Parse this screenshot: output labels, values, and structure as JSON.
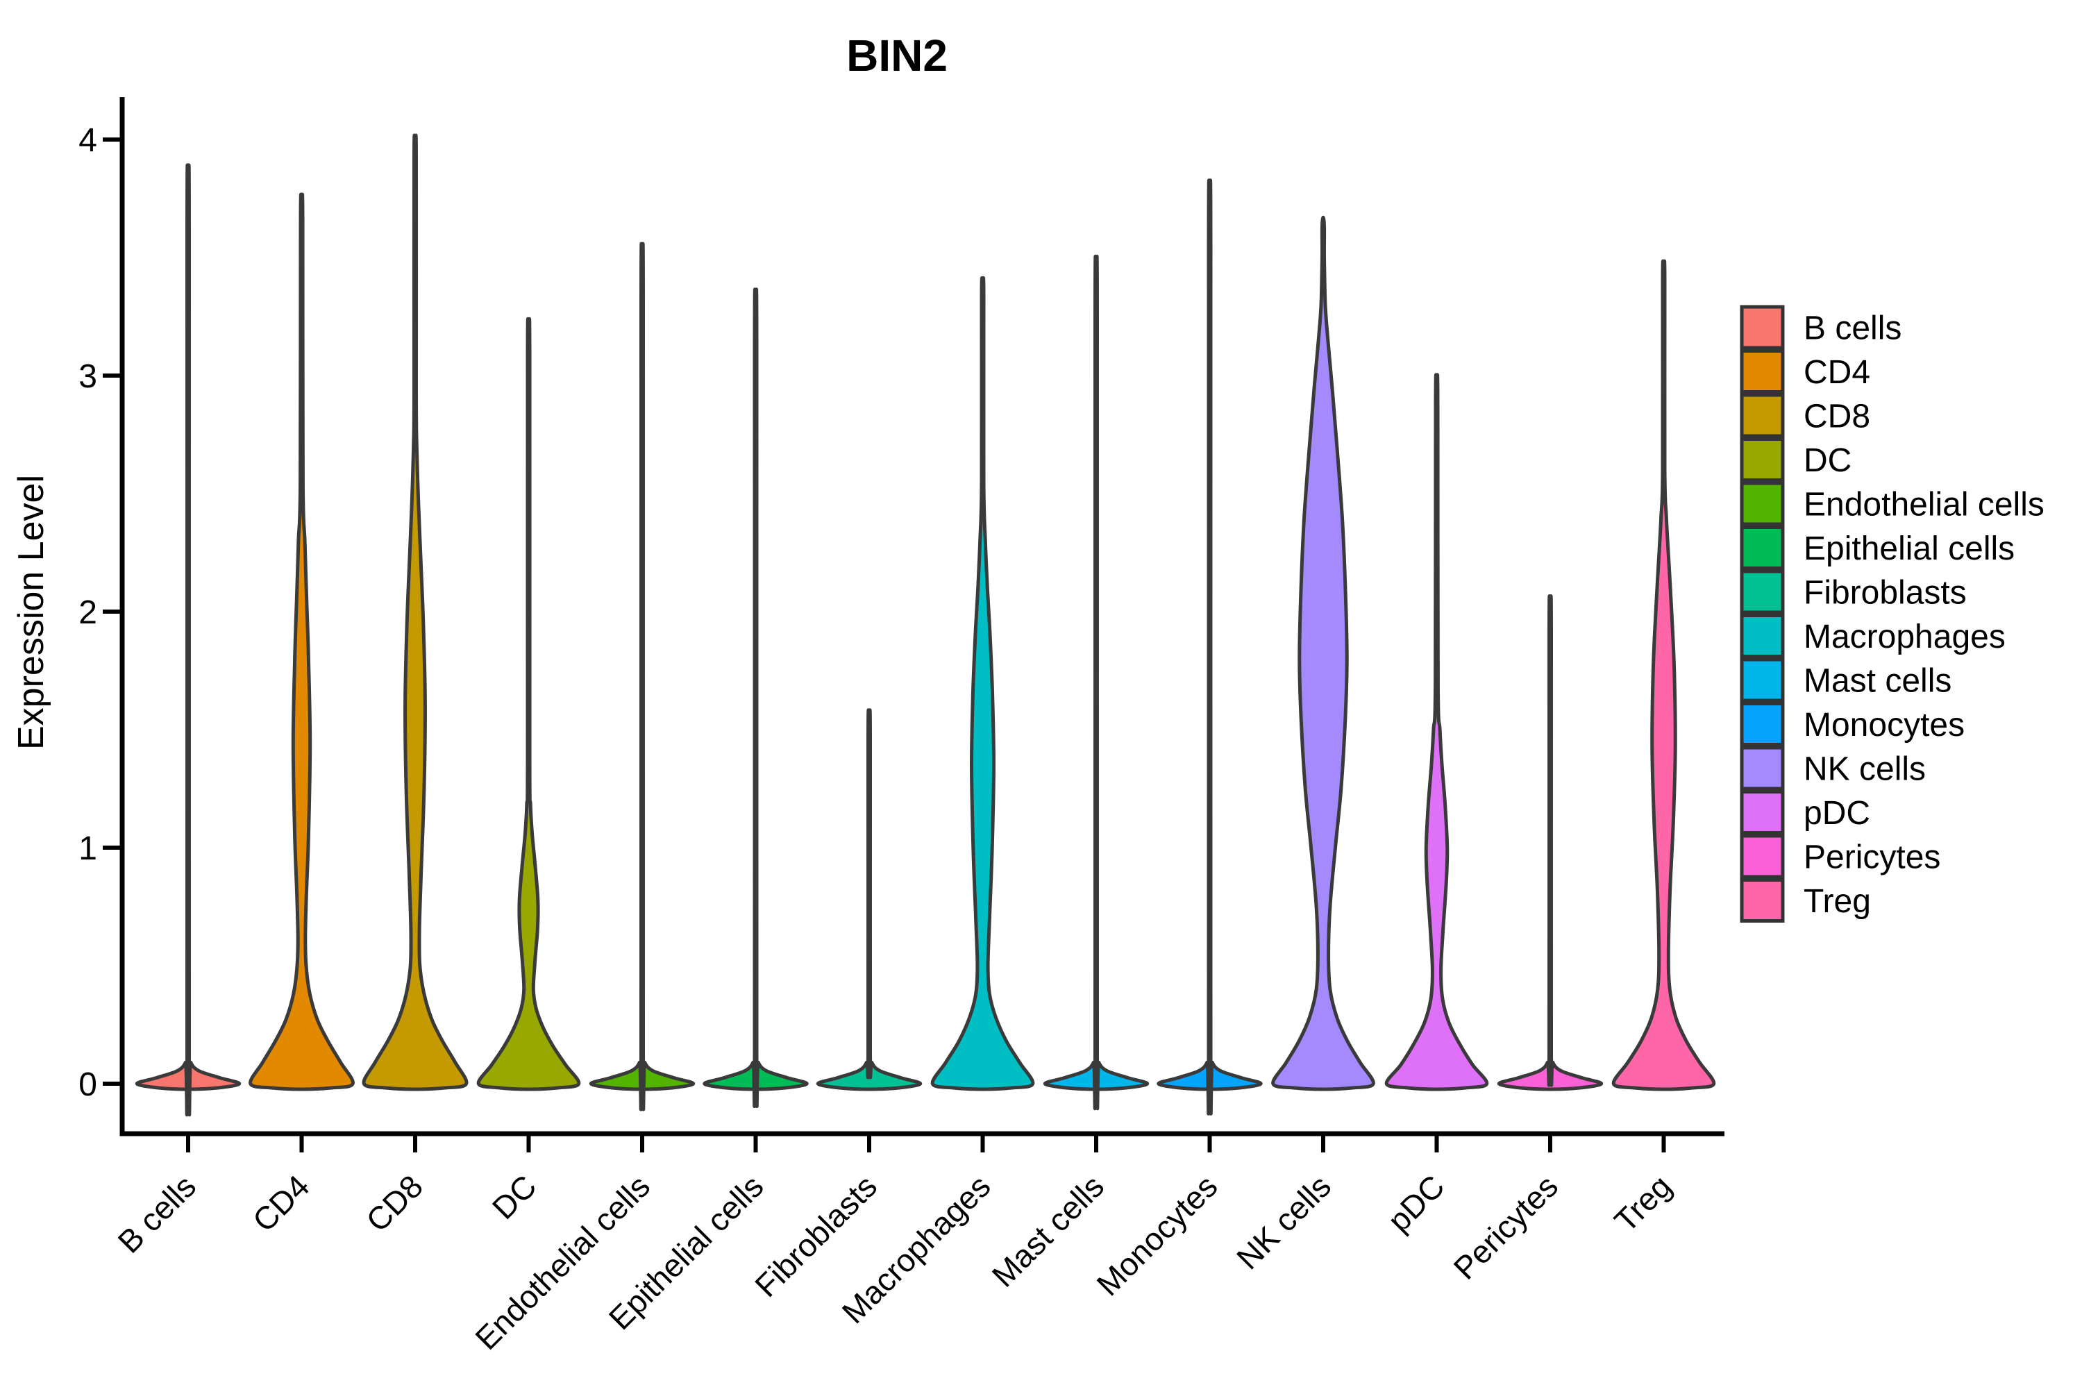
{
  "title": "BIN2",
  "y_axis": {
    "label": "Expression Level",
    "ticks": [
      "4",
      "3",
      "2",
      "1",
      "0"
    ]
  },
  "x_axis": {
    "categories": [
      "B cells",
      "CD4",
      "CD8",
      "DC",
      "Endothelial cells",
      "Epithelial cells",
      "Fibroblasts",
      "Macrophages",
      "Mast cells",
      "Monocytes",
      "NK cells",
      "pDC",
      "Pericytes",
      "Treg"
    ]
  },
  "legend": {
    "items": [
      {
        "label": "B cells",
        "color": "#F8766D"
      },
      {
        "label": "CD4",
        "color": "#E38900"
      },
      {
        "label": "CD8",
        "color": "#C49A00"
      },
      {
        "label": "DC",
        "color": "#99A800"
      },
      {
        "label": "Endothelial cells",
        "color": "#53B400"
      },
      {
        "label": "Epithelial cells",
        "color": "#00BC56"
      },
      {
        "label": "Fibroblasts",
        "color": "#00C094"
      },
      {
        "label": "Macrophages",
        "color": "#00BFC4"
      },
      {
        "label": "Mast cells",
        "color": "#00B6EB"
      },
      {
        "label": "Monocytes",
        "color": "#06A4FF"
      },
      {
        "label": "NK cells",
        "color": "#A58AFF"
      },
      {
        "label": "pDC",
        "color": "#DF70F8"
      },
      {
        "label": "Pericytes",
        "color": "#FB61D7"
      },
      {
        "label": "Treg",
        "color": "#FF66A8"
      }
    ]
  },
  "chart_data": {
    "type": "violin",
    "title": "BIN2",
    "xlabel": "",
    "ylabel": "Expression Level",
    "ylim": [
      -0.2,
      4.2
    ],
    "y_ticks": [
      0,
      1,
      2,
      3,
      4
    ],
    "grid": false,
    "legend_position": "right",
    "categories": [
      "B cells",
      "CD4",
      "CD8",
      "DC",
      "Endothelial cells",
      "Epithelial cells",
      "Fibroblasts",
      "Macrophages",
      "Mast cells",
      "Monocytes",
      "NK cells",
      "pDC",
      "Pericytes",
      "Treg"
    ],
    "colors": [
      "#F8766D",
      "#E38900",
      "#C49A00",
      "#99A800",
      "#53B400",
      "#00BC56",
      "#00C094",
      "#00BFC4",
      "#00B6EB",
      "#06A4FF",
      "#A58AFF",
      "#DF70F8",
      "#FB61D7",
      "#FF66A8"
    ],
    "outline_color": "#3A3A3A",
    "series": [
      {
        "name": "B cells",
        "max_expression": 3.66,
        "shape": "flat",
        "profile": [
          [
            0,
            0.97
          ],
          [
            0.025,
            0.6
          ],
          [
            0.055,
            0.2
          ],
          [
            0.09,
            0.05
          ],
          [
            0.14,
            0.02
          ],
          [
            3.62,
            0.02
          ],
          [
            3.66,
            0
          ]
        ]
      },
      {
        "name": "CD4",
        "max_expression": 3.71,
        "shape": "bell_bulge",
        "profile": [
          [
            0,
            0.97
          ],
          [
            0.09,
            0.74
          ],
          [
            0.18,
            0.5
          ],
          [
            0.27,
            0.3
          ],
          [
            0.38,
            0.155
          ],
          [
            0.5,
            0.085
          ],
          [
            0.62,
            0.07
          ],
          [
            0.8,
            0.09
          ],
          [
            1.05,
            0.13
          ],
          [
            1.44,
            0.16
          ],
          [
            1.8,
            0.13
          ],
          [
            2.05,
            0.095
          ],
          [
            2.3,
            0.06
          ],
          [
            2.55,
            0.025
          ],
          [
            3.67,
            0.02
          ],
          [
            3.71,
            0
          ]
        ]
      },
      {
        "name": "CD8",
        "max_expression": 3.97,
        "shape": "bell_bulge",
        "profile": [
          [
            0,
            0.97
          ],
          [
            0.09,
            0.76
          ],
          [
            0.18,
            0.52
          ],
          [
            0.27,
            0.32
          ],
          [
            0.38,
            0.17
          ],
          [
            0.5,
            0.09
          ],
          [
            0.65,
            0.08
          ],
          [
            0.9,
            0.115
          ],
          [
            1.25,
            0.17
          ],
          [
            1.61,
            0.19
          ],
          [
            1.95,
            0.155
          ],
          [
            2.2,
            0.11
          ],
          [
            2.45,
            0.065
          ],
          [
            2.7,
            0.03
          ],
          [
            2.95,
            0.02
          ],
          [
            3.93,
            0.02
          ],
          [
            3.97,
            0
          ]
        ]
      },
      {
        "name": "DC",
        "max_expression": 3.14,
        "shape": "bell_bulge",
        "profile": [
          [
            0,
            0.95
          ],
          [
            0.08,
            0.7
          ],
          [
            0.16,
            0.46
          ],
          [
            0.24,
            0.27
          ],
          [
            0.32,
            0.14
          ],
          [
            0.4,
            0.09
          ],
          [
            0.52,
            0.12
          ],
          [
            0.66,
            0.17
          ],
          [
            0.78,
            0.175
          ],
          [
            0.92,
            0.125
          ],
          [
            1.05,
            0.07
          ],
          [
            1.18,
            0.035
          ],
          [
            1.4,
            0.02
          ],
          [
            3.1,
            0.02
          ],
          [
            3.14,
            0
          ]
        ]
      },
      {
        "name": "Endothelial cells",
        "max_expression": 3.35,
        "shape": "flat",
        "profile": [
          [
            0,
            0.97
          ],
          [
            0.025,
            0.6
          ],
          [
            0.055,
            0.2
          ],
          [
            0.09,
            0.05
          ],
          [
            0.14,
            0.02
          ],
          [
            3.31,
            0.02
          ],
          [
            3.35,
            0
          ]
        ]
      },
      {
        "name": "Epithelial cells",
        "max_expression": 3.17,
        "shape": "flat",
        "profile": [
          [
            0,
            0.97
          ],
          [
            0.025,
            0.6
          ],
          [
            0.055,
            0.2
          ],
          [
            0.09,
            0.05
          ],
          [
            0.14,
            0.02
          ],
          [
            3.13,
            0.02
          ],
          [
            3.17,
            0
          ]
        ]
      },
      {
        "name": "Fibroblasts",
        "max_expression": 1.51,
        "shape": "flat",
        "profile": [
          [
            0,
            0.97
          ],
          [
            0.025,
            0.6
          ],
          [
            0.055,
            0.2
          ],
          [
            0.09,
            0.05
          ],
          [
            0.14,
            0.02
          ],
          [
            1.47,
            0.02
          ],
          [
            1.51,
            0
          ]
        ]
      },
      {
        "name": "Macrophages",
        "max_expression": 3.38,
        "shape": "bell_bulge",
        "profile": [
          [
            0,
            0.95
          ],
          [
            0.09,
            0.7
          ],
          [
            0.18,
            0.45
          ],
          [
            0.28,
            0.25
          ],
          [
            0.38,
            0.13
          ],
          [
            0.5,
            0.1
          ],
          [
            0.7,
            0.13
          ],
          [
            1.0,
            0.18
          ],
          [
            1.35,
            0.21
          ],
          [
            1.65,
            0.185
          ],
          [
            1.9,
            0.14
          ],
          [
            2.1,
            0.09
          ],
          [
            2.3,
            0.05
          ],
          [
            2.55,
            0.02
          ],
          [
            3.34,
            0.02
          ],
          [
            3.38,
            0
          ]
        ]
      },
      {
        "name": "Mast cells",
        "max_expression": 3.3,
        "shape": "flat",
        "profile": [
          [
            0,
            0.97
          ],
          [
            0.025,
            0.6
          ],
          [
            0.055,
            0.2
          ],
          [
            0.09,
            0.05
          ],
          [
            0.14,
            0.02
          ],
          [
            3.26,
            0.02
          ],
          [
            3.3,
            0
          ]
        ]
      },
      {
        "name": "Monocytes",
        "max_expression": 3.6,
        "shape": "flat",
        "profile": [
          [
            0,
            0.97
          ],
          [
            0.025,
            0.6
          ],
          [
            0.055,
            0.2
          ],
          [
            0.09,
            0.05
          ],
          [
            0.14,
            0.02
          ],
          [
            3.56,
            0.02
          ],
          [
            3.6,
            0
          ]
        ]
      },
      {
        "name": "NK cells",
        "max_expression": 3.67,
        "shape": "bell_bulge",
        "profile": [
          [
            0,
            0.95
          ],
          [
            0.09,
            0.7
          ],
          [
            0.18,
            0.46
          ],
          [
            0.28,
            0.26
          ],
          [
            0.4,
            0.13
          ],
          [
            0.55,
            0.1
          ],
          [
            0.75,
            0.13
          ],
          [
            1.0,
            0.23
          ],
          [
            1.25,
            0.34
          ],
          [
            1.55,
            0.42
          ],
          [
            1.8,
            0.45
          ],
          [
            2.1,
            0.42
          ],
          [
            2.4,
            0.36
          ],
          [
            2.7,
            0.26
          ],
          [
            2.95,
            0.17
          ],
          [
            3.15,
            0.09
          ],
          [
            3.3,
            0.04
          ],
          [
            3.5,
            0.02
          ],
          [
            3.63,
            0.02
          ],
          [
            3.67,
            0
          ]
        ]
      },
      {
        "name": "pDC",
        "max_expression": 2.94,
        "shape": "bell_bulge",
        "profile": [
          [
            0,
            0.95
          ],
          [
            0.08,
            0.68
          ],
          [
            0.17,
            0.43
          ],
          [
            0.26,
            0.23
          ],
          [
            0.36,
            0.11
          ],
          [
            0.48,
            0.08
          ],
          [
            0.65,
            0.12
          ],
          [
            0.85,
            0.18
          ],
          [
            1.0,
            0.2
          ],
          [
            1.18,
            0.16
          ],
          [
            1.35,
            0.1
          ],
          [
            1.5,
            0.06
          ],
          [
            1.7,
            0.025
          ],
          [
            2.9,
            0.02
          ],
          [
            2.94,
            0
          ]
        ]
      },
      {
        "name": "Pericytes",
        "max_expression": 1.96,
        "shape": "flat",
        "profile": [
          [
            0,
            0.97
          ],
          [
            0.025,
            0.6
          ],
          [
            0.055,
            0.2
          ],
          [
            0.09,
            0.05
          ],
          [
            0.14,
            0.02
          ],
          [
            1.92,
            0.02
          ],
          [
            1.96,
            0
          ]
        ]
      },
      {
        "name": "Treg",
        "max_expression": 3.45,
        "shape": "bell_bulge",
        "profile": [
          [
            0,
            0.95
          ],
          [
            0.09,
            0.68
          ],
          [
            0.18,
            0.43
          ],
          [
            0.28,
            0.23
          ],
          [
            0.4,
            0.115
          ],
          [
            0.55,
            0.09
          ],
          [
            0.82,
            0.12
          ],
          [
            1.1,
            0.18
          ],
          [
            1.42,
            0.22
          ],
          [
            1.75,
            0.2
          ],
          [
            2.0,
            0.15
          ],
          [
            2.2,
            0.1
          ],
          [
            2.4,
            0.05
          ],
          [
            2.6,
            0.02
          ],
          [
            3.41,
            0.02
          ],
          [
            3.45,
            0
          ]
        ]
      }
    ]
  }
}
